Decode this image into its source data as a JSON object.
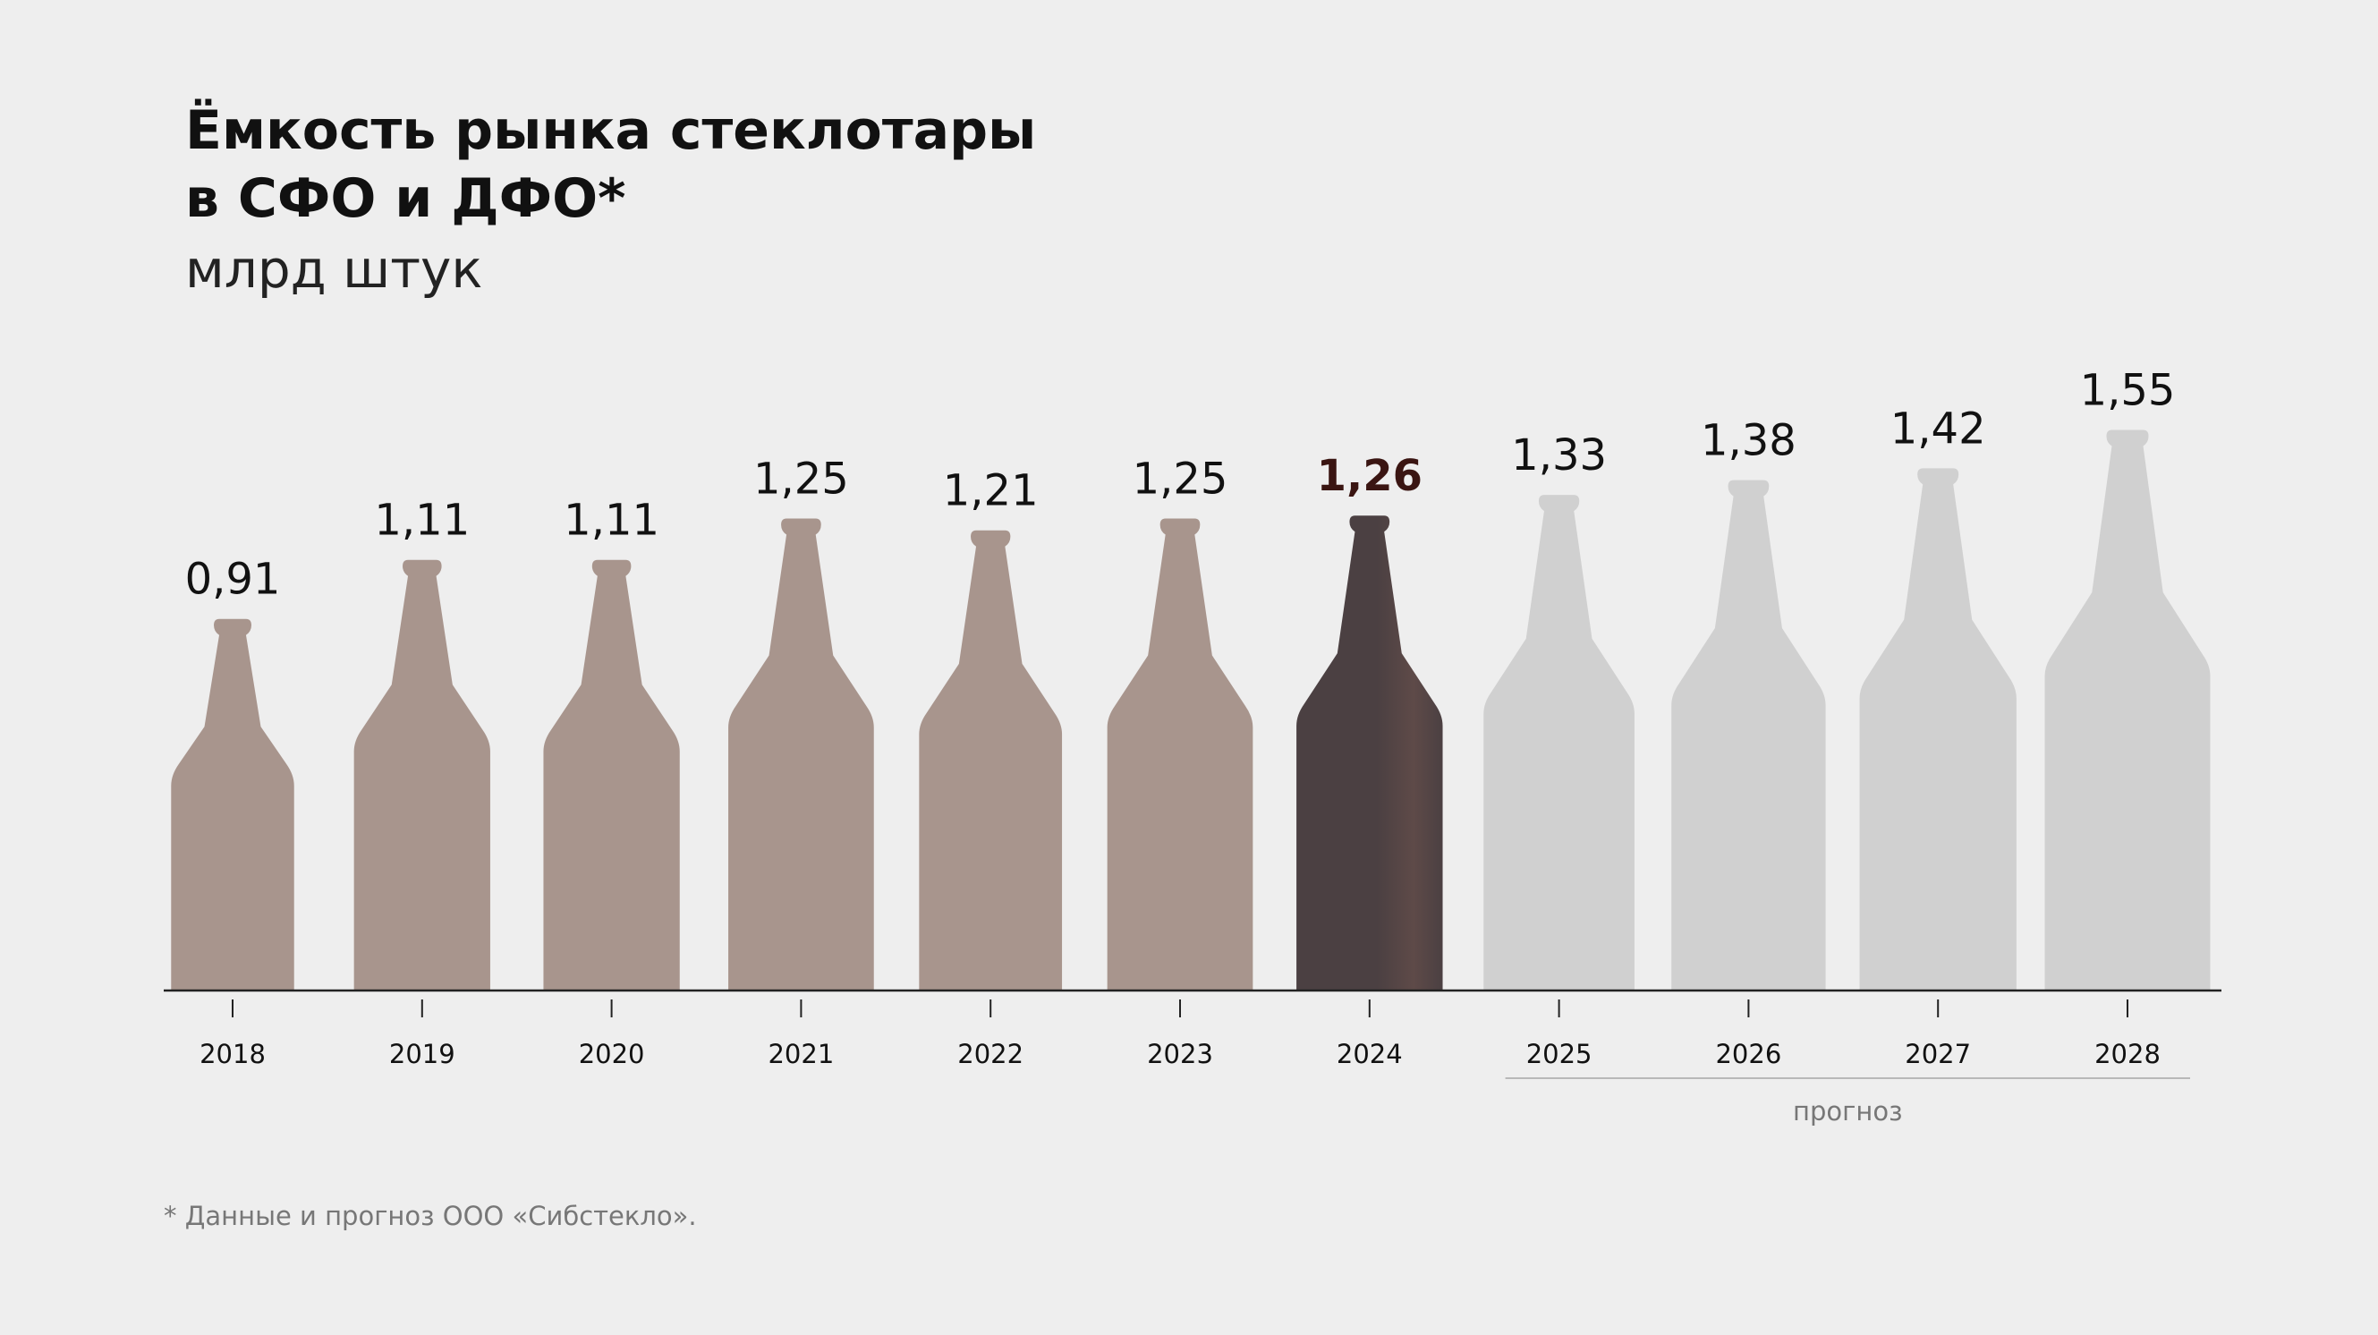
{
  "title_lines": [
    "Ёмкость рынка стеклотары",
    "в СФО и ДФО*"
  ],
  "subtitle": "млрд штук",
  "footnote": "* Данные и прогноз ООО «Сибстекло».",
  "chart_data": {
    "type": "bar",
    "bar_shape": "bottle",
    "title": "Ёмкость рынка стеклотары в СФО и ДФО*",
    "subtitle": "млрд штук",
    "categories": [
      "2018",
      "2019",
      "2020",
      "2021",
      "2022",
      "2023",
      "2024",
      "2025",
      "2026",
      "2027",
      "2028"
    ],
    "values": [
      0.91,
      1.11,
      1.11,
      1.25,
      1.21,
      1.25,
      1.26,
      1.33,
      1.38,
      1.42,
      1.55
    ],
    "value_labels": [
      "0,91",
      "1,11",
      "1,11",
      "1,25",
      "1,21",
      "1,25",
      "1,26",
      "1,33",
      "1,38",
      "1,42",
      "1,55"
    ],
    "highlight_category": "2024",
    "forecast_categories": [
      "2025",
      "2026",
      "2027",
      "2028"
    ],
    "forecast_label": "прогноз",
    "colors": {
      "historical": "#a8958d",
      "highlight": "#4b4042",
      "highlight_label": "#3a1512",
      "forecast": "#d0d0d0",
      "axis": "#222222",
      "background": "#eeeeee"
    }
  }
}
